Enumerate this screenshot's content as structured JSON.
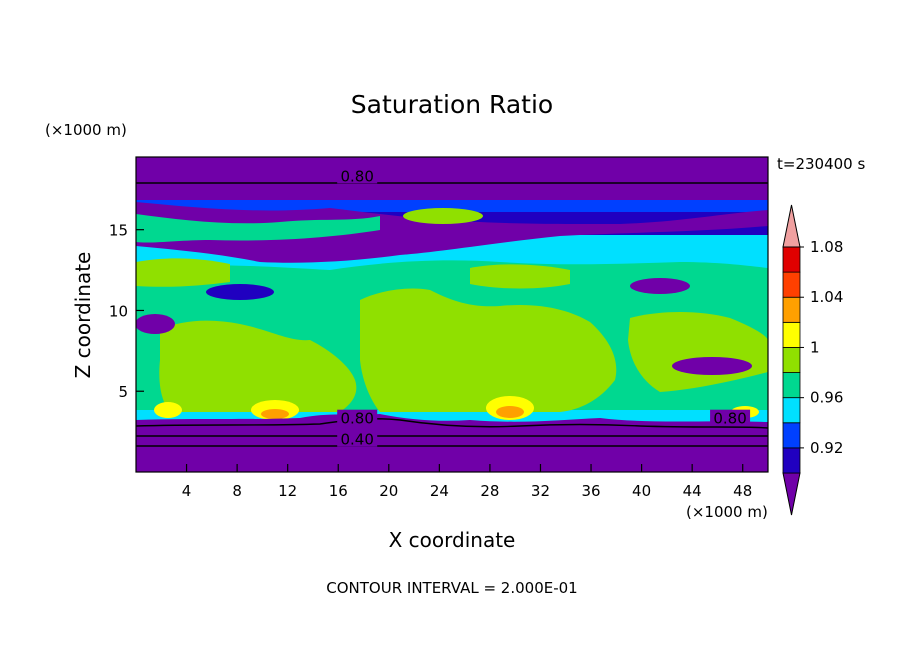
{
  "chart_data": {
    "type": "heatmap",
    "title": "Saturation Ratio",
    "xlabel": "X coordinate",
    "ylabel": "Z coordinate",
    "x_unit": "(×1000 m)",
    "y_unit": "(×1000 m)",
    "time_label": "t=230400 s",
    "footer": "CONTOUR INTERVAL = 2.000E-01",
    "xlim": [
      0,
      50
    ],
    "ylim": [
      0,
      19.5
    ],
    "x_ticks": [
      4,
      8,
      12,
      16,
      20,
      24,
      28,
      32,
      36,
      40,
      44,
      48
    ],
    "y_ticks": [
      5,
      10,
      15
    ],
    "colorbar": {
      "levels": [
        0.92,
        0.96,
        1,
        1.04,
        1.08
      ],
      "tick_labels": [
        "0.92",
        "0.96",
        "1",
        "1.04",
        "1.08"
      ],
      "colors": [
        "#7000a8",
        "#2000c0",
        "#0040ff",
        "#00e0ff",
        "#00d890",
        "#90e000",
        "#ffff00",
        "#ffa000",
        "#ff4000",
        "#e00000",
        "#f0a0a0"
      ],
      "extend": "both"
    },
    "contour_labels": [
      {
        "text": "0.80",
        "x": 17.5,
        "z": 18.3
      },
      {
        "text": "0.80",
        "x": 17.5,
        "z": 3.3
      },
      {
        "text": "0.80",
        "x": 47,
        "z": 3.3
      },
      {
        "text": "0.40",
        "x": 17.5,
        "z": 2.0
      }
    ]
  }
}
